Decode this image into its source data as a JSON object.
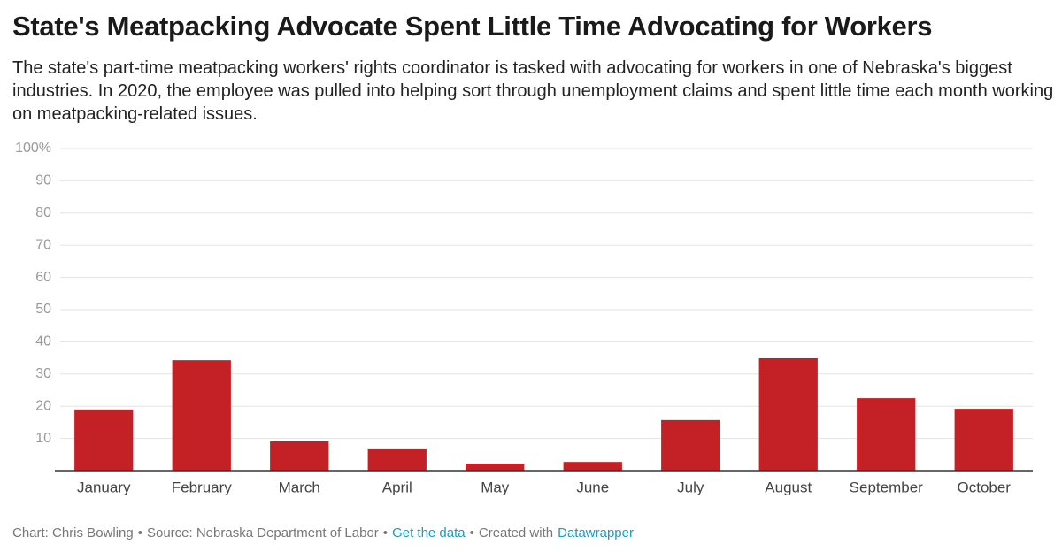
{
  "chart_data": {
    "type": "bar",
    "title": "State's Meatpacking Advocate Spent Little Time Advocating for Workers",
    "subtitle": "The state's part-time meatpacking workers' rights coordinator is tasked with advocating for workers in one of Nebraska's biggest industries. In 2020, the employee was pulled into helping sort through unemployment claims and spent little time each month working on meatpacking-related issues.",
    "categories": [
      "January",
      "February",
      "March",
      "April",
      "May",
      "June",
      "July",
      "August",
      "September",
      "October"
    ],
    "values": [
      19,
      34.3,
      9.1,
      6.9,
      2.2,
      2.7,
      15.7,
      34.9,
      22.5,
      19.2
    ],
    "color": "#c42126",
    "ylim": [
      0,
      100
    ],
    "yticks": [
      {
        "value": 100,
        "label": "100%"
      },
      90,
      80,
      70,
      60,
      50,
      40,
      30,
      20,
      10
    ],
    "grid": true,
    "footer": {
      "byline": "Chart: Chris Bowling",
      "separator": "•",
      "source": "Source: Nebraska Department of Labor",
      "get_data": "Get the data",
      "created": "Created with",
      "tool": "Datawrapper"
    }
  }
}
